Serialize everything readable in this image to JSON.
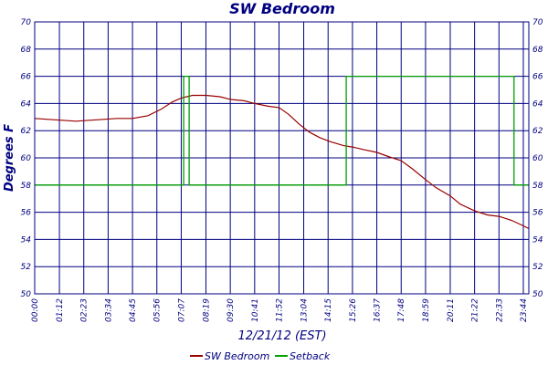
{
  "chart_data": {
    "type": "line",
    "title": "SW Bedroom",
    "xlabel": "12/21/12 (EST)",
    "ylabel": "Degrees F",
    "ylim": [
      50,
      70
    ],
    "y_ticks": [
      50,
      52,
      54,
      56,
      58,
      60,
      62,
      64,
      66,
      68,
      70
    ],
    "x_range_minutes": [
      0,
      1440
    ],
    "x_ticks": [
      "00:00",
      "01:12",
      "02:23",
      "03:34",
      "04:45",
      "05:56",
      "07:07",
      "08:19",
      "09:30",
      "10:41",
      "11:52",
      "13:04",
      "14:15",
      "15:26",
      "16:37",
      "17:48",
      "18:59",
      "20:11",
      "21:22",
      "22:33",
      "23:44"
    ],
    "x_tick_minutes": [
      0,
      72,
      143,
      214,
      285,
      356,
      427,
      499,
      570,
      641,
      712,
      784,
      855,
      926,
      997,
      1068,
      1139,
      1211,
      1282,
      1353,
      1424
    ],
    "grid": true,
    "legend_position": "bottom",
    "series": [
      {
        "name": "SW Bedroom",
        "color": "#990000",
        "x": [
          0,
          60,
          120,
          180,
          240,
          285,
          330,
          370,
          400,
          427,
          460,
          499,
          540,
          570,
          610,
          641,
          680,
          712,
          740,
          770,
          800,
          830,
          860,
          900,
          926,
          960,
          997,
          1030,
          1068,
          1100,
          1139,
          1170,
          1211,
          1240,
          1282,
          1320,
          1353,
          1390,
          1424,
          1440
        ],
        "y": [
          62.9,
          62.8,
          62.7,
          62.8,
          62.9,
          62.9,
          63.1,
          63.6,
          64.1,
          64.4,
          64.6,
          64.6,
          64.5,
          64.3,
          64.2,
          64.0,
          63.8,
          63.7,
          63.2,
          62.5,
          61.9,
          61.5,
          61.2,
          60.9,
          60.8,
          60.6,
          60.4,
          60.1,
          59.8,
          59.2,
          58.4,
          57.8,
          57.2,
          56.6,
          56.1,
          55.8,
          55.7,
          55.4,
          55.0,
          54.8
        ]
      },
      {
        "name": "Setback",
        "color": "#00a000",
        "x": [
          0,
          434,
          434,
          450,
          450,
          908,
          908,
          1397,
          1397,
          1440
        ],
        "y": [
          58,
          58,
          66,
          66,
          58,
          58,
          66,
          66,
          58,
          58
        ]
      }
    ]
  }
}
